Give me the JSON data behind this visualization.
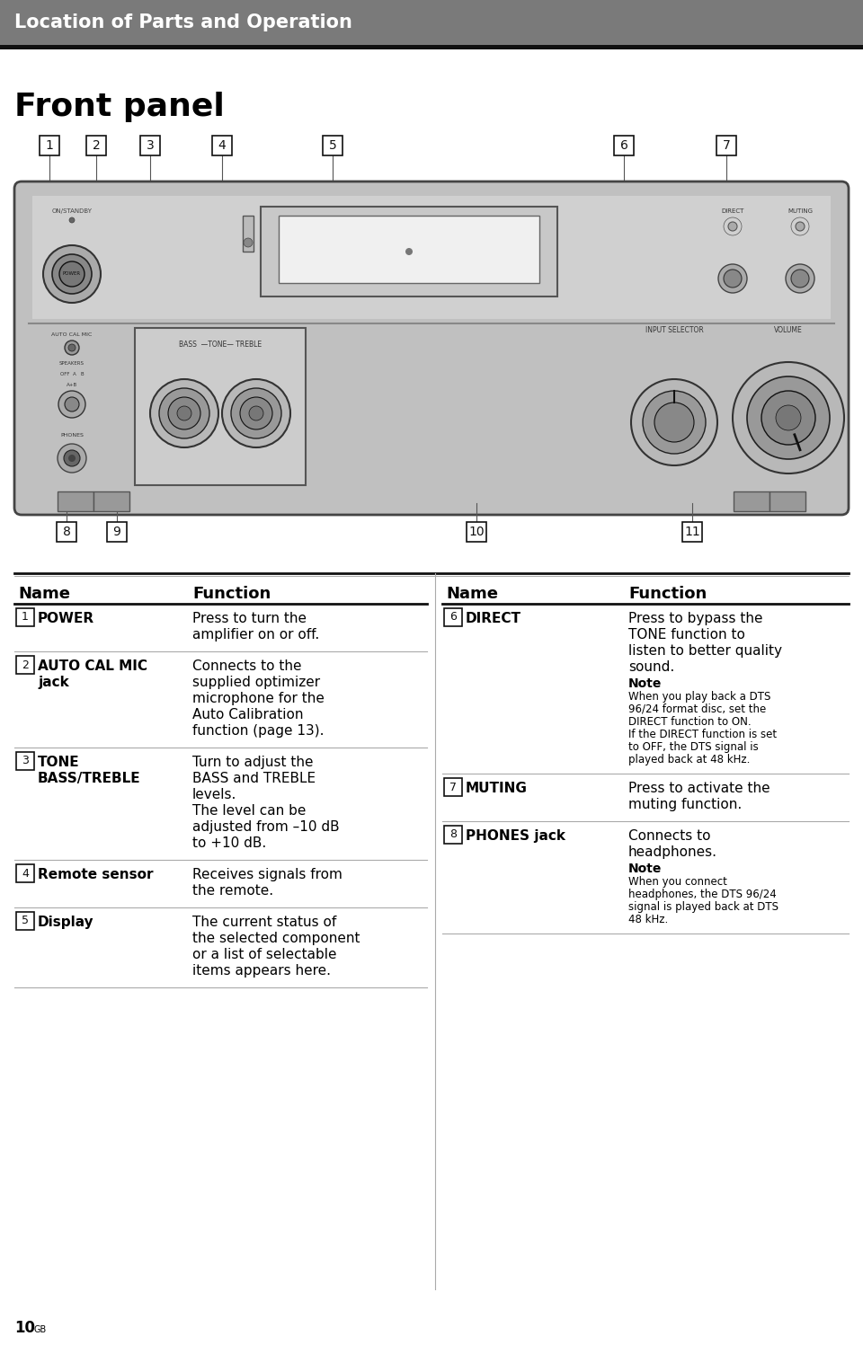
{
  "header_bg": "#7a7a7a",
  "header_text": "Location of Parts and Operation",
  "header_text_color": "#ffffff",
  "page_bg": "#ffffff",
  "title": "Front panel",
  "table_left": {
    "headers": [
      "Name",
      "Function"
    ],
    "rows": [
      {
        "num": "1",
        "name": "POWER",
        "function": "Press to turn the\namplifier on or off.",
        "note": ""
      },
      {
        "num": "2",
        "name": "AUTO CAL MIC\njack",
        "function": "Connects to the\nsupplied optimizer\nmicrophone for the\nAuto Calibration\nfunction (page 13).",
        "note": ""
      },
      {
        "num": "3",
        "name": "TONE\nBASS/TREBLE",
        "function": "Turn to adjust the\nBASS and TREBLE\nlevels.\nThe level can be\nadjusted from –10 dB\nto +10 dB.",
        "note": ""
      },
      {
        "num": "4",
        "name": "Remote sensor",
        "function": "Receives signals from\nthe remote.",
        "note": ""
      },
      {
        "num": "5",
        "name": "Display",
        "function": "The current status of\nthe selected component\nor a list of selectable\nitems appears here.",
        "note": ""
      }
    ]
  },
  "table_right": {
    "headers": [
      "Name",
      "Function"
    ],
    "rows": [
      {
        "num": "6",
        "name": "DIRECT",
        "function": "Press to bypass the\nTONE function to\nlisten to better quality\nsound.",
        "note": "When you play back a DTS\n96/24 format disc, set the\nDIRECT function to ON.\nIf the DIRECT function is set\nto OFF, the DTS signal is\nplayed back at 48 kHz."
      },
      {
        "num": "7",
        "name": "MUTING",
        "function": "Press to activate the\nmuting function.",
        "note": ""
      },
      {
        "num": "8",
        "name": "PHONES jack",
        "function": "Connects to\nheadphones.",
        "note": "When you connect\nheadphones, the DTS 96/24\nsignal is played back at DTS\n48 kHz."
      }
    ]
  },
  "page_number": "10",
  "page_suffix": "GB",
  "num_labels_top": [
    [
      55,
      "1"
    ],
    [
      107,
      "2"
    ],
    [
      167,
      "3"
    ],
    [
      247,
      "4"
    ],
    [
      370,
      "5"
    ],
    [
      694,
      "6"
    ],
    [
      808,
      "7"
    ]
  ],
  "num_labels_bottom": [
    [
      74,
      "8"
    ],
    [
      130,
      "9"
    ],
    [
      530,
      "10"
    ],
    [
      770,
      "11"
    ]
  ]
}
